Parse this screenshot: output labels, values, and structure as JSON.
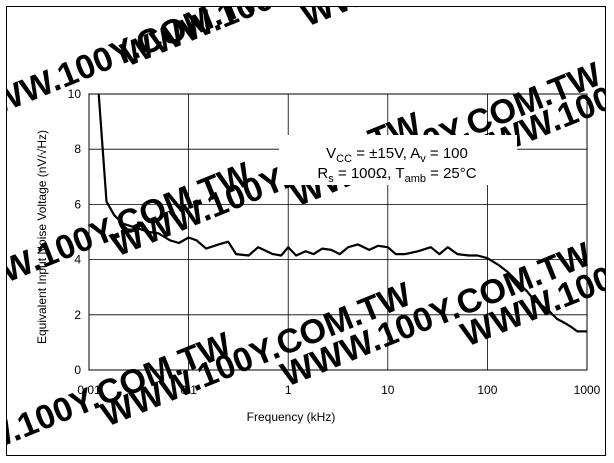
{
  "chart_data": {
    "type": "line",
    "xscale": "log",
    "xlim": [
      0.01,
      1000
    ],
    "ylim": [
      0,
      10
    ],
    "grid": true,
    "xlabel": "Frequency (kHz)",
    "ylabel": "Equivalent Input Noise Voltage (nV/√Hz)",
    "xticks": [
      "0.01",
      "0.1",
      "1",
      "10",
      "100",
      "1000"
    ],
    "xtick_values": [
      0.01,
      0.1,
      1,
      10,
      100,
      1000
    ],
    "yticks": [
      "0",
      "2",
      "4",
      "6",
      "8",
      "10"
    ],
    "ytick_values": [
      0,
      2,
      4,
      6,
      8,
      10
    ],
    "annotation": {
      "line1": {
        "a": "V",
        "a_sub": "CC",
        "b": " = ±15V, A",
        "b_sub": "v",
        "c": " = 100"
      },
      "line2": {
        "a": "R",
        "a_sub": "s",
        "b": " = 100Ω, T",
        "b_sub": "amb",
        "c": " = 25°C"
      }
    },
    "watermark": "WWW.100Y.COM.TW",
    "series": [
      {
        "color": "#000000",
        "x": [
          0.0125,
          0.015,
          0.018,
          0.022,
          0.03,
          0.04,
          0.05,
          0.065,
          0.08,
          0.1,
          0.12,
          0.15,
          0.2,
          0.25,
          0.3,
          0.4,
          0.5,
          0.7,
          0.85,
          1.0,
          1.2,
          1.5,
          1.8,
          2.2,
          2.7,
          3.3,
          4.0,
          5.0,
          6.5,
          8.0,
          10,
          12,
          15,
          20,
          27,
          33,
          40,
          50,
          65,
          80,
          100,
          130,
          160,
          200,
          250,
          300,
          400,
          500,
          600,
          700,
          800,
          1000
        ],
        "y": [
          10,
          6.1,
          5.6,
          5.3,
          5.15,
          5.0,
          4.95,
          4.7,
          4.6,
          4.8,
          4.7,
          4.4,
          4.55,
          4.65,
          4.2,
          4.15,
          4.45,
          4.2,
          4.15,
          4.45,
          4.15,
          4.3,
          4.2,
          4.4,
          4.35,
          4.2,
          4.45,
          4.55,
          4.35,
          4.5,
          4.45,
          4.2,
          4.2,
          4.3,
          4.45,
          4.2,
          4.45,
          4.2,
          4.15,
          4.15,
          4.05,
          3.8,
          3.55,
          3.2,
          2.85,
          2.5,
          2.2,
          1.85,
          1.7,
          1.55,
          1.4,
          1.4
        ]
      }
    ]
  }
}
